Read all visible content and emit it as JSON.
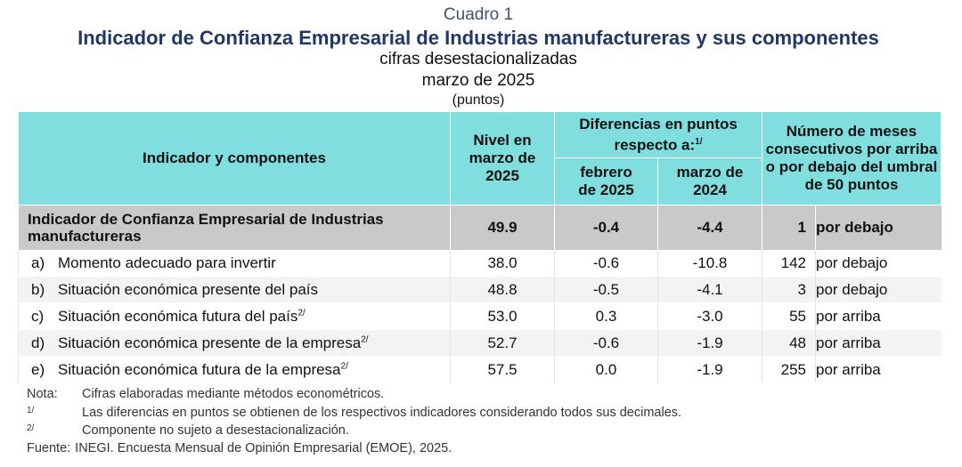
{
  "header": {
    "label": "Cuadro 1",
    "title": "Indicador de Confianza Empresarial de Industrias manufactureras y sus componentes",
    "subtitle": "cifras desestacionalizadas",
    "period": "marzo de 2025",
    "units": "(puntos)"
  },
  "table": {
    "columns": {
      "indicator": "Indicador y componentes",
      "level": "Nivel en marzo de 2025",
      "differences": "Diferencias en puntos respecto a:",
      "differences_note": "1/",
      "previous_month": "febrero de 2025",
      "previous_year": "marzo de 2024",
      "months": "Número de meses consecutivos por arriba o por debajo del umbral de 50 puntos"
    },
    "total": {
      "label": "Indicador de Confianza Empresarial de Industrias manufactureras",
      "level": "49.9",
      "previous_month": "-0.4",
      "previous_year": "-4.4",
      "months": "1",
      "position": "por debajo"
    },
    "rows": [
      {
        "letter": "a)",
        "label": "Momento adecuado para invertir",
        "note": null,
        "level": "38.0",
        "previous_month": "-0.6",
        "previous_year": "-10.8",
        "months": "142",
        "position": "por debajo"
      },
      {
        "letter": "b)",
        "label": "Situación económica presente del país",
        "note": null,
        "level": "48.8",
        "previous_month": "-0.5",
        "previous_year": "-4.1",
        "months": "3",
        "position": "por debajo"
      },
      {
        "letter": "c)",
        "label": "Situación económica futura del país",
        "note": "2/",
        "level": "53.0",
        "previous_month": "0.3",
        "previous_year": "-3.0",
        "months": "55",
        "position": "por arriba"
      },
      {
        "letter": "d)",
        "label": "Situación económica presente de la empresa",
        "note": "2/",
        "level": "52.7",
        "previous_month": "-0.6",
        "previous_year": "-1.9",
        "months": "48",
        "position": "por arriba"
      },
      {
        "letter": "e)",
        "label": "Situación económica futura de la empresa",
        "note": "2/",
        "level": "57.5",
        "previous_month": "0.0",
        "previous_year": "-1.9",
        "months": "255",
        "position": "por arriba"
      }
    ]
  },
  "notes": [
    {
      "key": "Nota:",
      "text": "Cifras elaboradas mediante métodos econométricos."
    },
    {
      "key": "1/",
      "text": "Las diferencias en puntos se obtienen de los respectivos indicadores considerando todos sus decimales."
    },
    {
      "key": "2/",
      "text": "Componente no sujeto a desestacionalización."
    }
  ],
  "source": {
    "key": "Fuente:",
    "text": "INEGI. Encuesta Mensual de Opinión Empresarial (EMOE), 2025."
  }
}
